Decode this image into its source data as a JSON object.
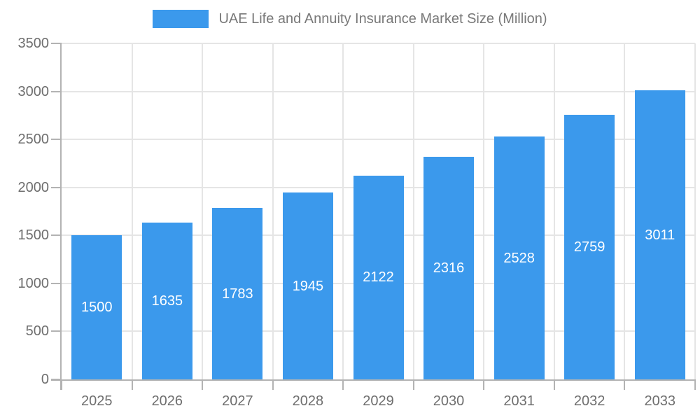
{
  "chart_data": {
    "type": "bar",
    "title": "UAE Life and Annuity Insurance Market Size (Million)",
    "categories": [
      "2025",
      "2026",
      "2027",
      "2028",
      "2029",
      "2030",
      "2031",
      "2032",
      "2033"
    ],
    "values": [
      1500,
      1635,
      1783,
      1945,
      2122,
      2316,
      2528,
      2759,
      3011
    ],
    "xlabel": "",
    "ylabel": "",
    "ylim": [
      0,
      3500
    ],
    "ytick_step": 500,
    "yticks": [
      0,
      500,
      1000,
      1500,
      2000,
      2500,
      3000,
      3500
    ],
    "grid": true,
    "legend_position": "top",
    "bar_color": "#3B99EC",
    "bar_label_color": "#ffffff",
    "grid_color": "#e5e5e5",
    "axis_line_color": "#b3b3b3",
    "axis_text_color": "#6e6e6e",
    "title_color": "#787878",
    "background_color": "#ffffff"
  }
}
